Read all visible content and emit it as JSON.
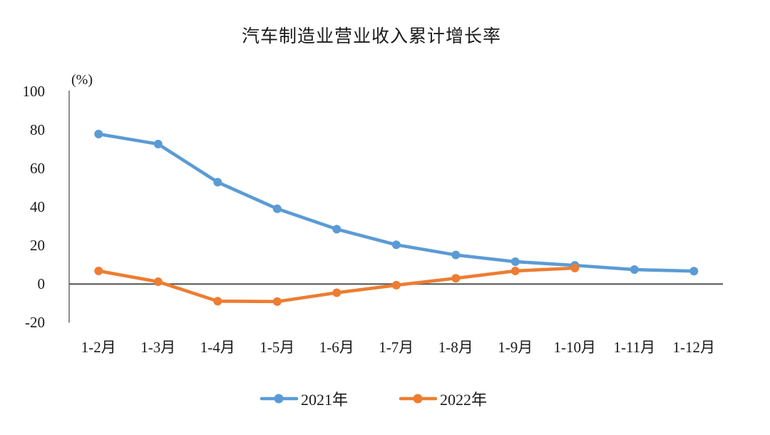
{
  "title": "汽车制造业营业收入累计增长率",
  "y_unit_label": "(%)",
  "legend": [
    {
      "label": "2021年",
      "color": "#5B9BD5"
    },
    {
      "label": "2022年",
      "color": "#ED7D31"
    }
  ],
  "chart_data": {
    "type": "line",
    "title": "汽车制造业营业收入累计增长率",
    "ylabel": "(%)",
    "xlabel": "",
    "ylim": [
      -20,
      100
    ],
    "yticks": [
      100,
      80,
      60,
      40,
      20,
      0,
      -20
    ],
    "grid": false,
    "legend_position": "bottom",
    "categories": [
      "1-2月",
      "1-3月",
      "1-4月",
      "1-5月",
      "1-6月",
      "1-7月",
      "1-8月",
      "1-9月",
      "1-10月",
      "1-11月",
      "1-12月"
    ],
    "series": [
      {
        "name": "2021年",
        "color": "#5B9BD5",
        "values": [
          77.9,
          72.7,
          52.9,
          39.1,
          28.5,
          20.4,
          15.1,
          11.6,
          9.7,
          7.5,
          6.7
        ]
      },
      {
        "name": "2022年",
        "color": "#ED7D31",
        "values": [
          6.8,
          1.2,
          -8.9,
          -9.1,
          -4.5,
          -0.6,
          3.0,
          6.8,
          8.3,
          null,
          null
        ]
      }
    ]
  }
}
